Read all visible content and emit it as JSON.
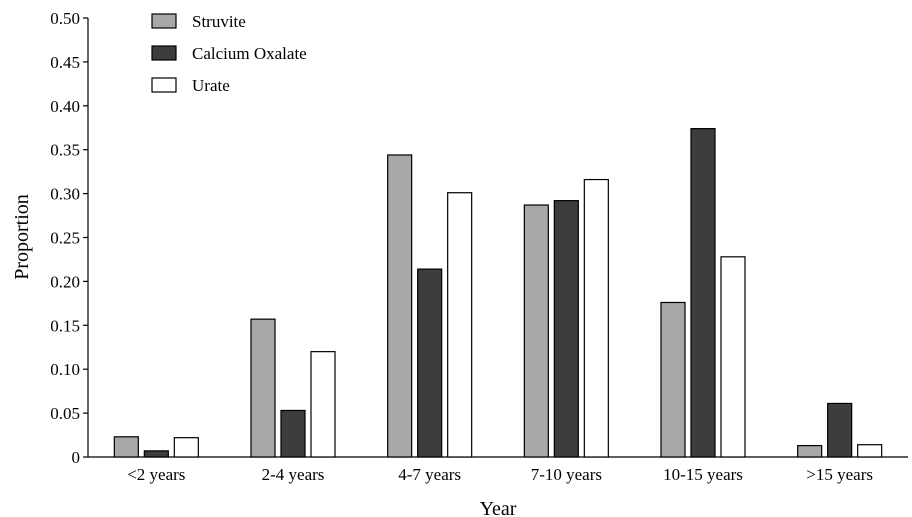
{
  "chart_data": {
    "type": "bar",
    "title": "",
    "xlabel": "Year",
    "ylabel": "Proportion",
    "ylim": [
      0,
      0.5
    ],
    "yticks": [
      "0",
      "0.05",
      "0.10",
      "0.15",
      "0.20",
      "0.25",
      "0.30",
      "0.35",
      "0.40",
      "0.45",
      "0.50"
    ],
    "categories": [
      "<2 years",
      "2-4 years",
      "4-7 years",
      "7-10 years",
      "10-15 years",
      ">15 years"
    ],
    "series": [
      {
        "name": "Struvite",
        "color": "#a8a8a8",
        "values": [
          0.023,
          0.157,
          0.344,
          0.287,
          0.176,
          0.013
        ]
      },
      {
        "name": "Calcium Oxalate",
        "color": "#3d3d3d",
        "values": [
          0.007,
          0.053,
          0.214,
          0.292,
          0.374,
          0.061
        ]
      },
      {
        "name": "Urate",
        "color": "#ffffff",
        "values": [
          0.022,
          0.12,
          0.301,
          0.316,
          0.228,
          0.014
        ]
      }
    ],
    "legend": "top-left",
    "grid": false
  }
}
